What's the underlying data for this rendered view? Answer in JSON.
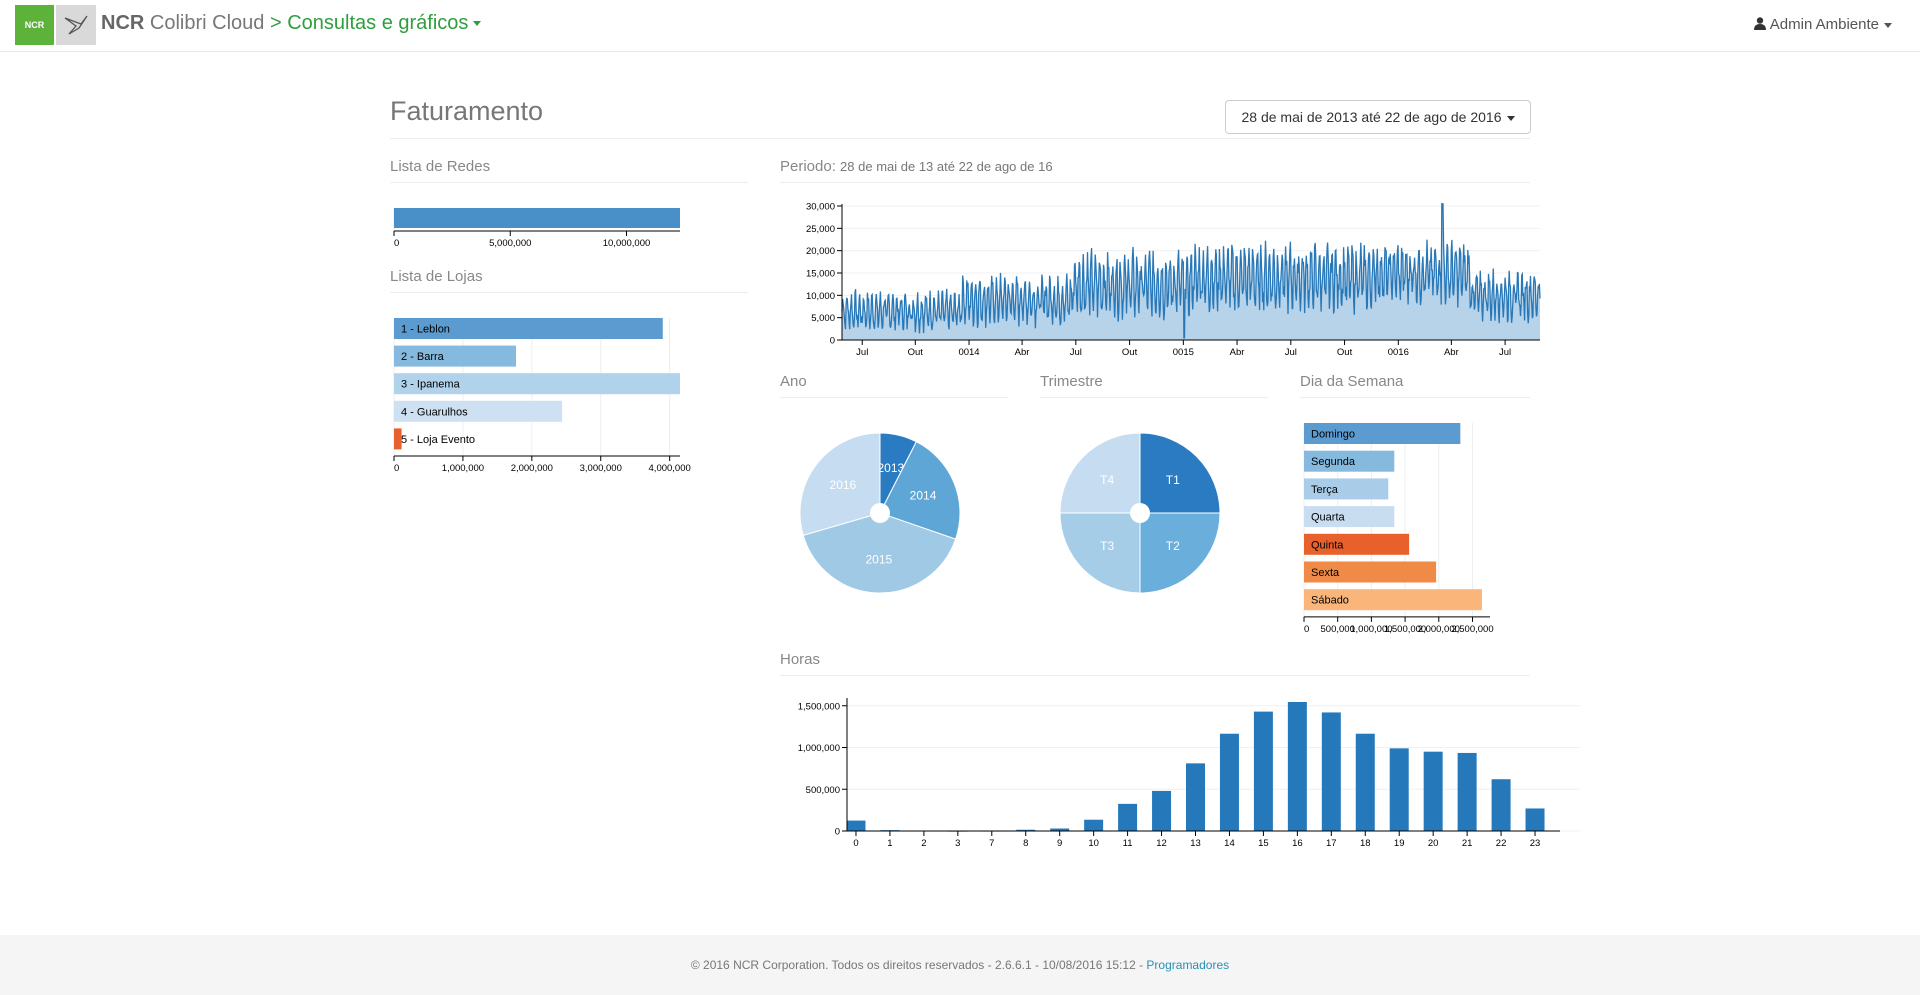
{
  "navbar": {
    "brand_bold": "NCR",
    "brand_rest": "Colibri Cloud",
    "breadcrumb": "> Consultas e gráficos",
    "user": "Admin Ambiente",
    "logo_text": "NCR"
  },
  "page": {
    "title": "Faturamento",
    "range_label": "28 de mai de 2013 até 22 de ago de 2016"
  },
  "redes": {
    "title": "Lista de Redes",
    "chart_data": {
      "type": "bar",
      "orientation": "horizontal",
      "categories": [
        ""
      ],
      "values": [
        12300000
      ],
      "xlim": [
        0,
        12300000
      ],
      "ticks": [
        0,
        5000000,
        10000000
      ],
      "tick_labels": [
        "0",
        "5,000,000",
        "10,000,000"
      ],
      "color": "#4a90c8"
    }
  },
  "lojas": {
    "title": "Lista de Lojas",
    "chart_data": {
      "type": "bar",
      "orientation": "horizontal",
      "categories": [
        "1 - Leblon",
        "2 - Barra",
        "3 - Ipanema",
        "4 - Guarulhos",
        "5 - Loja Evento"
      ],
      "values": [
        3900000,
        1770000,
        4150000,
        2440000,
        110000
      ],
      "colors": [
        "#5b9bcf",
        "#85b9dd",
        "#b0d2ea",
        "#cde1f2",
        "#e8602c"
      ],
      "xlim": [
        0,
        4150000
      ],
      "ticks": [
        0,
        1000000,
        2000000,
        3000000,
        4000000
      ],
      "tick_labels": [
        "0",
        "1,000,000",
        "2,000,000",
        "3,000,000",
        "4,000,000"
      ]
    }
  },
  "periodo": {
    "title": "Periodo:",
    "subtitle": "28 de mai de 13 até 22 de ago de 16",
    "chart_data": {
      "type": "area",
      "ylim": [
        0,
        30000
      ],
      "yticks": [
        0,
        5000,
        10000,
        15000,
        20000,
        25000,
        30000
      ],
      "ytick_labels": [
        "0",
        "5,000",
        "10,000",
        "15,000",
        "20,000",
        "25,000",
        "30,000"
      ],
      "xtick_labels": [
        "Jul",
        "Out",
        "0014",
        "Abr",
        "Jul",
        "Out",
        "0015",
        "Abr",
        "Jul",
        "Out",
        "0016",
        "Abr",
        "Jul"
      ],
      "xtick_pos": [
        0.029,
        0.105,
        0.182,
        0.258,
        0.335,
        0.412,
        0.489,
        0.566,
        0.643,
        0.72,
        0.797,
        0.873,
        0.95
      ],
      "segments": [
        {
          "x": [
            0,
            0.17
          ],
          "base": 6500,
          "amp": 3500
        },
        {
          "x": [
            0.17,
            0.33
          ],
          "base": 9000,
          "amp": 4500
        },
        {
          "x": [
            0.33,
            0.5
          ],
          "base": 12500,
          "amp": 6000
        },
        {
          "x": [
            0.5,
            0.76
          ],
          "base": 14000,
          "amp": 6000
        },
        {
          "x": [
            0.76,
            0.9
          ],
          "base": 15000,
          "amp": 5500
        },
        {
          "x": [
            0.9,
            1.0
          ],
          "base": 10000,
          "amp": 4500
        }
      ],
      "peak": 30500,
      "line_color": "#2878b8",
      "fill_color": "#b7d3ea"
    }
  },
  "ano": {
    "title": "Ano",
    "chart_data": {
      "type": "pie",
      "labels": [
        "2013",
        "2014",
        "2015",
        "2016"
      ],
      "values": [
        7.5,
        22.8,
        40.2,
        29.5
      ],
      "colors": [
        "#2a7bc2",
        "#5ea6d6",
        "#9fc9e4",
        "#c6dcf1"
      ]
    }
  },
  "trimestre": {
    "title": "Trimestre",
    "chart_data": {
      "type": "pie",
      "labels": [
        "T1",
        "T2",
        "T3",
        "T4"
      ],
      "values": [
        25,
        25,
        25,
        25
      ],
      "colors": [
        "#2a7bc2",
        "#6aaedc",
        "#a6cde7",
        "#c6dcf1"
      ]
    }
  },
  "dia_semana": {
    "title": "Dia da Semana",
    "chart_data": {
      "type": "bar",
      "orientation": "horizontal",
      "categories": [
        "Domingo",
        "Segunda",
        "Terça",
        "Quarta",
        "Quinta",
        "Sexta",
        "Sábado"
      ],
      "values": [
        2320000,
        1340000,
        1250000,
        1340000,
        1560000,
        1960000,
        2640000
      ],
      "colors": [
        "#5b9bcf",
        "#85b9dd",
        "#a9cde8",
        "#c9ddf1",
        "#e8602c",
        "#f08a47",
        "#f9b57a"
      ],
      "xlim": [
        0,
        2760000
      ],
      "ticks": [
        0,
        500000,
        1000000,
        1500000,
        2000000,
        2500000
      ],
      "tick_labels": [
        "0",
        "500,000",
        "1,000,000",
        "1,500,000",
        "2,000,000",
        "2,500,000"
      ]
    }
  },
  "horas": {
    "title": "Horas",
    "chart_data": {
      "type": "bar",
      "categories": [
        "0",
        "1",
        "2",
        "3",
        "7",
        "8",
        "9",
        "10",
        "11",
        "12",
        "13",
        "14",
        "15",
        "16",
        "17",
        "18",
        "19",
        "20",
        "21",
        "22",
        "23"
      ],
      "values": [
        125000,
        10000,
        4000,
        2000,
        3000,
        15000,
        30000,
        135000,
        325000,
        480000,
        810000,
        1165000,
        1430000,
        1545000,
        1420000,
        1165000,
        990000,
        950000,
        935000,
        620000,
        270000
      ],
      "ylim": [
        0,
        1545000
      ],
      "yticks": [
        0,
        500000,
        1000000,
        1500000
      ],
      "ytick_labels": [
        "0",
        "500,000",
        "1,000,000",
        "1,500,000"
      ],
      "color": "#2579bb"
    }
  },
  "footer": {
    "text": "© 2016 NCR Corporation. Todos os direitos reservados - 2.6.6.1 - 10/08/2016 15:12 -",
    "link": "Programadores"
  }
}
